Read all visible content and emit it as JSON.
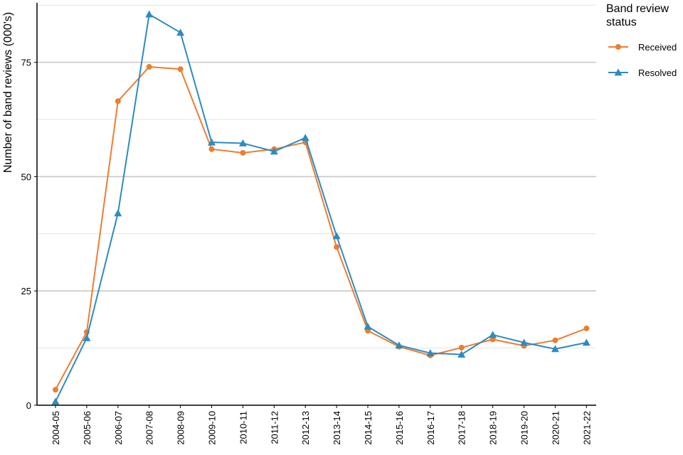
{
  "chart_data": {
    "type": "line",
    "title": "",
    "xlabel": "",
    "ylabel": "Number of band reviews (000's)",
    "ylim": [
      0,
      88
    ],
    "yticks": [
      0,
      25,
      50,
      75
    ],
    "grid": {
      "major_y": true,
      "minor_y": true,
      "x": false
    },
    "legend": {
      "title": "Band review status",
      "title_lines": [
        "Band review",
        "status"
      ],
      "position": "right"
    },
    "categories": [
      "2004-05",
      "2005-06",
      "2006-07",
      "2007-08",
      "2008-09",
      "2009-10",
      "2010-11",
      "2011-12",
      "2012-13",
      "2013-14",
      "2014-15",
      "2015-16",
      "2016-17",
      "2017-18",
      "2018-19",
      "2019-20",
      "2020-21",
      "2021-22"
    ],
    "series": [
      {
        "name": "Received",
        "color": "#ed7d31",
        "marker": "circle",
        "values": [
          3.4,
          16.0,
          66.5,
          74.0,
          73.5,
          56.0,
          55.2,
          56.0,
          57.5,
          34.6,
          16.3,
          12.8,
          10.9,
          12.6,
          14.4,
          13.0,
          14.2,
          16.8
        ]
      },
      {
        "name": "Resolved",
        "color": "#2e8bc0",
        "marker": "triangle",
        "values": [
          0.8,
          14.7,
          42.0,
          85.5,
          81.5,
          57.5,
          57.3,
          55.5,
          58.5,
          37.0,
          17.2,
          13.1,
          11.4,
          11.1,
          15.4,
          13.7,
          12.3,
          13.7
        ]
      }
    ]
  }
}
